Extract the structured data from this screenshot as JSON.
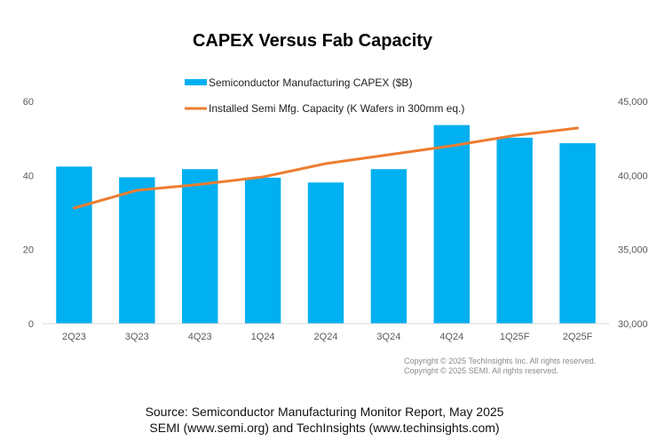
{
  "chart_data": {
    "type": "bar",
    "title": "CAPEX Versus Fab Capacity",
    "categories": [
      "2Q23",
      "3Q23",
      "4Q23",
      "1Q24",
      "2Q24",
      "3Q24",
      "4Q24",
      "1Q25F",
      "2Q25F"
    ],
    "series": [
      {
        "name": "Semiconductor Manufacturing CAPEX ($B)",
        "type": "bar",
        "axis": "left",
        "color": "#00B0F0",
        "values": [
          42.4,
          39.5,
          41.7,
          39.4,
          38.1,
          41.7,
          53.6,
          50.2,
          48.7
        ]
      },
      {
        "name": "Installed Semi Mfg. Capacity (K Wafers in 300mm eq.)",
        "type": "line",
        "axis": "right",
        "color": "#ED7D31",
        "values": [
          37800,
          39000,
          39400,
          39900,
          40800,
          41400,
          42000,
          42700,
          43200
        ]
      }
    ],
    "y_left": {
      "min": 0,
      "max": 60,
      "ticks": [
        0,
        20,
        40,
        60
      ],
      "tick_labels": [
        "0",
        "20",
        "40",
        "60"
      ]
    },
    "y_right": {
      "min": 30000,
      "max": 45000,
      "ticks": [
        30000,
        35000,
        40000,
        45000
      ],
      "tick_labels": [
        "30,000",
        "35,000",
        "40,000",
        "45,000"
      ]
    },
    "xlabel": "",
    "ylabel": "",
    "grid": false,
    "legend_position": "top-center"
  },
  "footer": {
    "copyright_1": "Copyright © 2025 TechInsights Inc.  All rights reserved.",
    "copyright_2": "Copyright © 2025 SEMI.  All rights reserved.",
    "source_1": "Source: Semiconductor Manufacturing Monitor Report, May 2025",
    "source_2": "SEMI (www.semi.org) and TechInsights (www.techinsights.com)"
  }
}
